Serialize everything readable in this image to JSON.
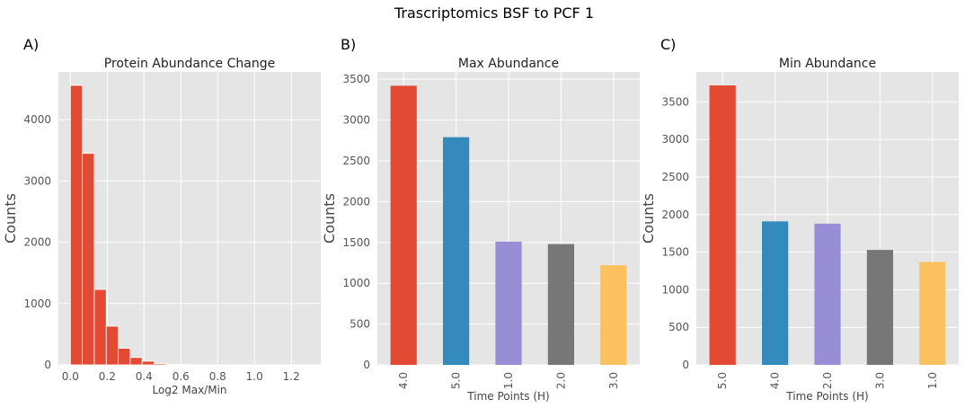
{
  "figure": {
    "suptitle": "Trascriptomics BSF to PCF 1"
  },
  "colors": {
    "plot_bg": "#e5e5e5",
    "grid": "#ffffff",
    "tick_text": "#555555",
    "palette": [
      "#e24a33",
      "#348abd",
      "#988ed5",
      "#777777",
      "#fbc15e"
    ]
  },
  "chart_data": [
    {
      "panel_label": "A)",
      "type": "bar",
      "subtype": "histogram",
      "title": "Protein Abundance Change",
      "xlabel": "Log2 Max/Min",
      "ylabel": "Counts",
      "xlim": [
        -0.065,
        1.36
      ],
      "ylim": [
        0,
        4780
      ],
      "xticks": [
        0.0,
        0.2,
        0.4,
        0.6,
        0.8,
        1.0,
        1.2
      ],
      "xtick_labels": [
        "0.0",
        "0.2",
        "0.4",
        "0.6",
        "0.8",
        "1.0",
        "1.2"
      ],
      "yticks": [
        0,
        1000,
        2000,
        3000,
        4000
      ],
      "ytick_labels": [
        "0",
        "1000",
        "2000",
        "3000",
        "4000"
      ],
      "bin_edges": [
        0.0,
        0.065,
        0.13,
        0.195,
        0.26,
        0.325,
        0.39,
        0.455,
        0.52,
        0.585,
        0.65,
        0.715,
        0.78,
        0.845,
        0.91,
        0.975,
        1.04,
        1.105,
        1.17,
        1.235,
        1.3
      ],
      "values": [
        4560,
        3450,
        1230,
        630,
        270,
        120,
        60,
        20,
        10,
        5,
        3,
        2,
        1,
        1,
        1,
        0,
        0,
        0,
        0,
        1
      ],
      "color": "#e24a33",
      "grid": true
    },
    {
      "panel_label": "B)",
      "type": "bar",
      "title": "Max Abundance",
      "xlabel": "Time Points (H)",
      "ylabel": "Counts",
      "categories": [
        "4.0",
        "5.0",
        "1.0",
        "2.0",
        "3.0"
      ],
      "values": [
        3420,
        2790,
        1510,
        1480,
        1220
      ],
      "ylim": [
        0,
        3590
      ],
      "yticks": [
        0,
        500,
        1000,
        1500,
        2000,
        2500,
        3000,
        3500
      ],
      "ytick_labels": [
        "0",
        "500",
        "1000",
        "1500",
        "2000",
        "2500",
        "3000",
        "3500"
      ],
      "colors": [
        "#e24a33",
        "#348abd",
        "#988ed5",
        "#777777",
        "#fbc15e"
      ],
      "grid": true
    },
    {
      "panel_label": "C)",
      "type": "bar",
      "title": "Min Abundance",
      "xlabel": "Time Points (H)",
      "ylabel": "Counts",
      "categories": [
        "5.0",
        "4.0",
        "2.0",
        "3.0",
        "1.0"
      ],
      "values": [
        3720,
        1910,
        1880,
        1530,
        1370
      ],
      "ylim": [
        0,
        3900
      ],
      "yticks": [
        0,
        500,
        1000,
        1500,
        2000,
        2500,
        3000,
        3500
      ],
      "ytick_labels": [
        "0",
        "500",
        "1000",
        "1500",
        "2000",
        "2500",
        "3000",
        "3500"
      ],
      "colors": [
        "#e24a33",
        "#348abd",
        "#988ed5",
        "#777777",
        "#fbc15e"
      ],
      "grid": true
    }
  ]
}
